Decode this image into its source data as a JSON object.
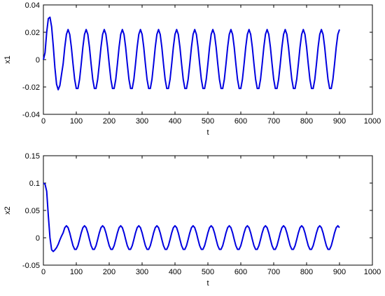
{
  "chart_data": [
    {
      "type": "line",
      "xlabel": "t",
      "ylabel": "x1",
      "xlim": [
        0,
        1000
      ],
      "xticks": [
        0,
        100,
        200,
        300,
        400,
        500,
        600,
        700,
        800,
        900,
        1000
      ],
      "ylim": [
        -0.04,
        0.04
      ],
      "yticks": [
        -0.04,
        -0.02,
        0,
        0.02,
        0.04
      ],
      "x": [
        0,
        5,
        10,
        15,
        20,
        25,
        30,
        35,
        40,
        45,
        50,
        55,
        60,
        65,
        70,
        75,
        80,
        85,
        90,
        95,
        100,
        105,
        110,
        115,
        120,
        125,
        130,
        135,
        140,
        145,
        150,
        155,
        160,
        165,
        170,
        175,
        180,
        185,
        190,
        195,
        200,
        205,
        210,
        215,
        220,
        225,
        230,
        235,
        240,
        245,
        250,
        255,
        260,
        265,
        270,
        275,
        280,
        285,
        290,
        295,
        300,
        305,
        310,
        315,
        320,
        325,
        330,
        335,
        340,
        345,
        350,
        355,
        360,
        365,
        370,
        375,
        380,
        385,
        390,
        395,
        400,
        405,
        410,
        415,
        420,
        425,
        430,
        435,
        440,
        445,
        450,
        455,
        460,
        465,
        470,
        475,
        480,
        485,
        490,
        495,
        500,
        505,
        510,
        515,
        520,
        525,
        530,
        535,
        540,
        545,
        550,
        555,
        560,
        565,
        570,
        575,
        580,
        585,
        590,
        595,
        600,
        605,
        610,
        615,
        620,
        625,
        630,
        635,
        640,
        645,
        650,
        655,
        660,
        665,
        670,
        675,
        680,
        685,
        690,
        695,
        700,
        705,
        710,
        715,
        720,
        725,
        730,
        735,
        740,
        745,
        750,
        755,
        760,
        765,
        770,
        775,
        780,
        785,
        790,
        795,
        800,
        805,
        810,
        815,
        820,
        825,
        830,
        835,
        840,
        845,
        850,
        855,
        860,
        865,
        870,
        875,
        880,
        885,
        890,
        895,
        900
      ],
      "series": [
        {
          "color": "#0000e0",
          "values": [
            0,
            0.005,
            0.02,
            0.03,
            0.031,
            0.024,
            0.01,
            -0.006,
            -0.018,
            -0.022,
            -0.019,
            -0.011,
            -0.0031,
            0.0091,
            0.0185,
            0.022,
            0.0185,
            0.0091,
            -0.0031,
            -0.0144,
            -0.0211,
            -0.0211,
            -0.0144,
            -0.0031,
            0.0091,
            0.0185,
            0.022,
            0.0185,
            0.0091,
            -0.0031,
            -0.0144,
            -0.0211,
            -0.0211,
            -0.0144,
            -0.0031,
            0.0091,
            0.0185,
            0.022,
            0.0185,
            0.0091,
            -0.0031,
            -0.0144,
            -0.0211,
            -0.0211,
            -0.0144,
            -0.0031,
            0.0091,
            0.0185,
            0.022,
            0.0185,
            0.0091,
            -0.0031,
            -0.0144,
            -0.0211,
            -0.0211,
            -0.0144,
            -0.0031,
            0.0091,
            0.0185,
            0.022,
            0.0185,
            0.0091,
            -0.0031,
            -0.0144,
            -0.0211,
            -0.0211,
            -0.0144,
            -0.0031,
            0.0091,
            0.0185,
            0.022,
            0.0185,
            0.0091,
            -0.0031,
            -0.0144,
            -0.0211,
            -0.0211,
            -0.0144,
            -0.0031,
            0.0091,
            0.0185,
            0.022,
            0.0185,
            0.0091,
            -0.0031,
            -0.0144,
            -0.0211,
            -0.0211,
            -0.0144,
            -0.0031,
            0.0091,
            0.0185,
            0.022,
            0.0185,
            0.0091,
            -0.0031,
            -0.0144,
            -0.0211,
            -0.0211,
            -0.0144,
            -0.0031,
            0.0091,
            0.0185,
            0.022,
            0.0185,
            0.0091,
            -0.0031,
            -0.0144,
            -0.0211,
            -0.0211,
            -0.0144,
            -0.0031,
            0.0091,
            0.0185,
            0.022,
            0.0185,
            0.0091,
            -0.0031,
            -0.0144,
            -0.0211,
            -0.0211,
            -0.0144,
            -0.0031,
            0.0091,
            0.0185,
            0.022,
            0.0185,
            0.0091,
            -0.0031,
            -0.0144,
            -0.0211,
            -0.0211,
            -0.0144,
            -0.0031,
            0.0091,
            0.0185,
            0.022,
            0.0185,
            0.0091,
            -0.0031,
            -0.0144,
            -0.0211,
            -0.0211,
            -0.0144,
            -0.0031,
            0.0091,
            0.0185,
            0.022,
            0.0185,
            0.0091,
            -0.0031,
            -0.0144,
            -0.0211,
            -0.0211,
            -0.0144,
            -0.0031,
            0.0091,
            0.0185,
            0.022,
            0.0185,
            0.0091,
            -0.0031,
            -0.0144,
            -0.0211,
            -0.0211,
            -0.0144,
            -0.0031,
            0.0091,
            0.0185,
            0.022,
            0.0185,
            0.0091,
            -0.0031,
            -0.0144,
            -0.0211,
            -0.0211,
            -0.0144,
            -0.0031,
            0.0091,
            0.0185,
            0.022
          ]
        }
      ]
    },
    {
      "type": "line",
      "xlabel": "t",
      "ylabel": "x2",
      "xlim": [
        0,
        1000
      ],
      "xticks": [
        0,
        100,
        200,
        300,
        400,
        500,
        600,
        700,
        800,
        900,
        1000
      ],
      "ylim": [
        -0.05,
        0.15
      ],
      "yticks": [
        -0.05,
        0,
        0.05,
        0.1,
        0.15
      ],
      "x": [
        0,
        5,
        10,
        15,
        20,
        25,
        30,
        35,
        40,
        45,
        50,
        55,
        60,
        65,
        70,
        75,
        80,
        85,
        90,
        95,
        100,
        105,
        110,
        115,
        120,
        125,
        130,
        135,
        140,
        145,
        150,
        155,
        160,
        165,
        170,
        175,
        180,
        185,
        190,
        195,
        200,
        205,
        210,
        215,
        220,
        225,
        230,
        235,
        240,
        245,
        250,
        255,
        260,
        265,
        270,
        275,
        280,
        285,
        290,
        295,
        300,
        305,
        310,
        315,
        320,
        325,
        330,
        335,
        340,
        345,
        350,
        355,
        360,
        365,
        370,
        375,
        380,
        385,
        390,
        395,
        400,
        405,
        410,
        415,
        420,
        425,
        430,
        435,
        440,
        445,
        450,
        455,
        460,
        465,
        470,
        475,
        480,
        485,
        490,
        495,
        500,
        505,
        510,
        515,
        520,
        525,
        530,
        535,
        540,
        545,
        550,
        555,
        560,
        565,
        570,
        575,
        580,
        585,
        590,
        595,
        600,
        605,
        610,
        615,
        620,
        625,
        630,
        635,
        640,
        645,
        650,
        655,
        660,
        665,
        670,
        675,
        680,
        685,
        690,
        695,
        700,
        705,
        710,
        715,
        720,
        725,
        730,
        735,
        740,
        745,
        750,
        755,
        760,
        765,
        770,
        775,
        780,
        785,
        790,
        795,
        800,
        805,
        810,
        815,
        820,
        825,
        830,
        835,
        840,
        845,
        850,
        855,
        860,
        865,
        870,
        875,
        880,
        885,
        890,
        895,
        900
      ],
      "series": [
        {
          "color": "#0000e0",
          "values": [
            0.1,
            0.098,
            0.085,
            0.04,
            0,
            -0.022,
            -0.025,
            -0.022,
            -0.018,
            -0.012,
            -0.004,
            0.003,
            0.0091,
            0.0185,
            0.022,
            0.0185,
            0.0091,
            -0.0031,
            -0.0144,
            -0.0211,
            -0.0211,
            -0.0144,
            -0.0031,
            0.0091,
            0.0185,
            0.022,
            0.0185,
            0.0091,
            -0.0031,
            -0.0144,
            -0.0211,
            -0.0211,
            -0.0144,
            -0.0031,
            0.0091,
            0.0185,
            0.022,
            0.0185,
            0.0091,
            -0.0031,
            -0.0144,
            -0.0211,
            -0.0211,
            -0.0144,
            -0.0031,
            0.0091,
            0.0185,
            0.022,
            0.0185,
            0.0091,
            -0.0031,
            -0.0144,
            -0.0211,
            -0.0211,
            -0.0144,
            -0.0031,
            0.0091,
            0.0185,
            0.022,
            0.0185,
            0.0091,
            -0.0031,
            -0.0144,
            -0.0211,
            -0.0211,
            -0.0144,
            -0.0031,
            0.0091,
            0.0185,
            0.022,
            0.0185,
            0.0091,
            -0.0031,
            -0.0144,
            -0.0211,
            -0.0211,
            -0.0144,
            -0.0031,
            0.0091,
            0.0185,
            0.022,
            0.0185,
            0.0091,
            -0.0031,
            -0.0144,
            -0.0211,
            -0.0211,
            -0.0144,
            -0.0031,
            0.0091,
            0.0185,
            0.022,
            0.0185,
            0.0091,
            -0.0031,
            -0.0144,
            -0.0211,
            -0.0211,
            -0.0144,
            -0.0031,
            0.0091,
            0.0185,
            0.022,
            0.0185,
            0.0091,
            -0.0031,
            -0.0144,
            -0.0211,
            -0.0211,
            -0.0144,
            -0.0031,
            0.0091,
            0.0185,
            0.022,
            0.0185,
            0.0091,
            -0.0031,
            -0.0144,
            -0.0211,
            -0.0211,
            -0.0144,
            -0.0031,
            0.0091,
            0.0185,
            0.022,
            0.0185,
            0.0091,
            -0.0031,
            -0.0144,
            -0.0211,
            -0.0211,
            -0.0144,
            -0.0031,
            0.0091,
            0.0185,
            0.022,
            0.0185,
            0.0091,
            -0.0031,
            -0.0144,
            -0.0211,
            -0.0211,
            -0.0144,
            -0.0031,
            0.0091,
            0.0185,
            0.022,
            0.0185,
            0.0091,
            -0.0031,
            -0.0144,
            -0.0211,
            -0.0211,
            -0.0144,
            -0.0031,
            0.0091,
            0.0185,
            0.022,
            0.0185,
            0.0091,
            -0.0031,
            -0.0144,
            -0.0211,
            -0.0211,
            -0.0144,
            -0.0031,
            0.0091,
            0.0185,
            0.022,
            0.0185,
            0.0091,
            -0.0031,
            -0.0144,
            -0.0211,
            -0.0211,
            -0.0144,
            -0.0031,
            0.0091,
            0.0185,
            0.022,
            0.0185
          ]
        }
      ]
    }
  ]
}
